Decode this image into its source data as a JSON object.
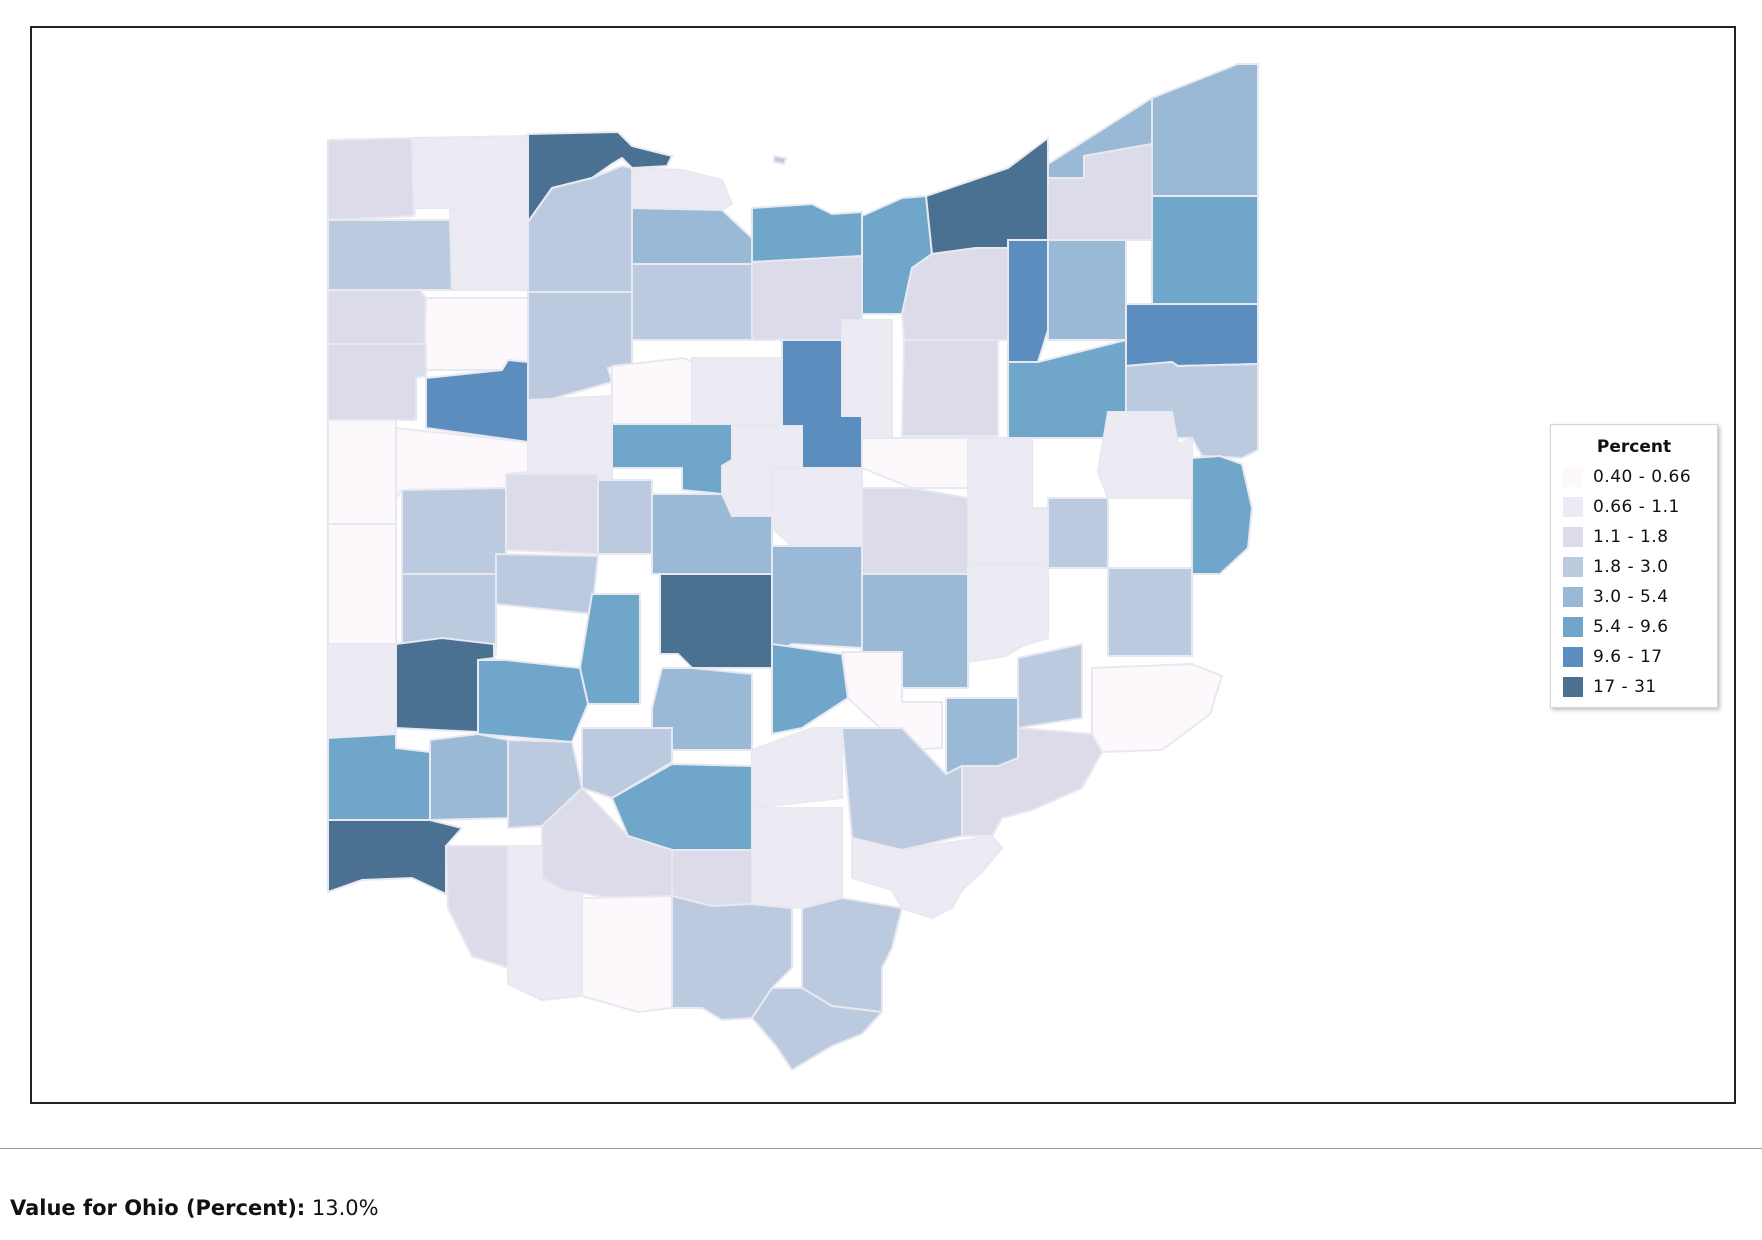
{
  "map": {
    "region": "Ohio",
    "color_scale": [
      {
        "range": "0.40 - 0.66",
        "color": "#fdf8fb"
      },
      {
        "range": "0.66 - 1.1",
        "color": "#ecebf3"
      },
      {
        "range": "1.1 - 1.8",
        "color": "#dcdbea"
      },
      {
        "range": "1.8 - 3.0",
        "color": "#bccadf"
      },
      {
        "range": "3.0 - 5.4",
        "color": "#99b9d6"
      },
      {
        "range": "5.4 - 9.6",
        "color": "#70a6c9"
      },
      {
        "range": "9.6 - 17",
        "color": "#5b8ebf"
      },
      {
        "range": "17 - 31",
        "color": "#4a7092"
      }
    ]
  },
  "legend": {
    "title": "Percent",
    "items": [
      "0.40 - 0.66",
      "0.66 - 1.1",
      "1.1 - 1.8",
      "1.8 - 3.0",
      "3.0 - 5.4",
      "5.4 - 9.6",
      "9.6 - 17",
      "17 - 31"
    ]
  },
  "summary": {
    "label": "Value for Ohio (Percent):",
    "value": "13.0%"
  }
}
